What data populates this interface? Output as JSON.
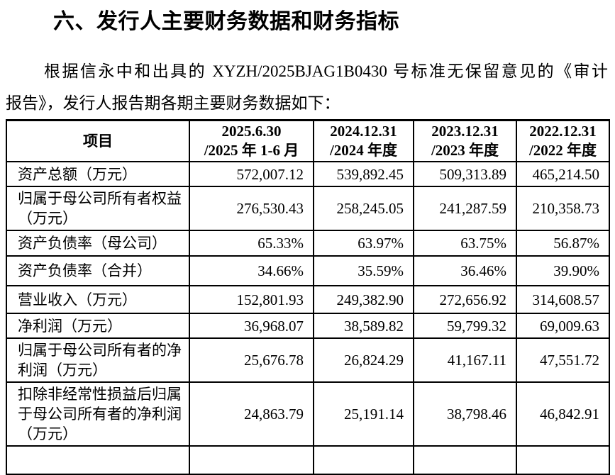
{
  "document": {
    "heading": "六、发行人主要财务数据和财务指标",
    "paragraph": {
      "line1": "根据信永中和出具的 XYZH/2025BJAG1B0430 号标准无保留意见的《审计",
      "line2": "报告》，发行人报告期各期主要财务数据如下："
    }
  },
  "table": {
    "columns": [
      {
        "line1": "项目",
        "line2": ""
      },
      {
        "line1": "2025.6.30",
        "line2": "/2025 年 1-6 月"
      },
      {
        "line1": "2024.12.31",
        "line2": "/2024 年度"
      },
      {
        "line1": "2023.12.31",
        "line2": "/2023 年度"
      },
      {
        "line1": "2022.12.31",
        "line2": "/2022 年度"
      }
    ],
    "rows": [
      {
        "label": "资产总额（万元）",
        "values": [
          "572,007.12",
          "539,892.45",
          "509,313.89",
          "465,214.50"
        ]
      },
      {
        "label": "归属于母公司所有者权益（万元）",
        "values": [
          "276,530.43",
          "258,245.05",
          "241,287.59",
          "210,358.73"
        ]
      },
      {
        "label": "资产负债率（母公司）",
        "values": [
          "65.33%",
          "63.97%",
          "63.75%",
          "56.87%"
        ]
      },
      {
        "label": "资产负债率（合并）",
        "values": [
          "34.66%",
          "35.59%",
          "36.46%",
          "39.90%"
        ]
      },
      {
        "label": "营业收入（万元）",
        "values": [
          "152,801.93",
          "249,382.90",
          "272,656.92",
          "314,608.57"
        ]
      },
      {
        "label": "净利润（万元）",
        "values": [
          "36,968.07",
          "38,589.82",
          "59,799.32",
          "69,009.63"
        ]
      },
      {
        "label": "归属于母公司所有者的净利润（万元）",
        "values": [
          "25,676.78",
          "26,824.29",
          "41,167.11",
          "47,551.72"
        ]
      },
      {
        "label": "扣除非经常性损益后归属于母公司所有者的净利润（万元）",
        "values": [
          "24,863.79",
          "25,191.14",
          "38,798.46",
          "46,842.91"
        ]
      }
    ]
  },
  "colors": {
    "text": "#000000",
    "border": "#000000",
    "background": "#ffffff"
  }
}
